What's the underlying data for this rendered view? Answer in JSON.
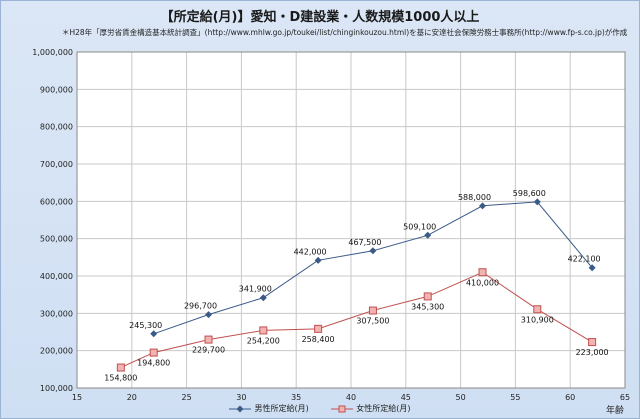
{
  "title": "【所定給(月)】愛知・D建設業・人数規模1000人以上",
  "subtitle": "＊H28年「厚労省賃金構造基本統計調査」(http://www.mhlw.go.jp/toukei/list/chinginkouzou.html)を基に安達社会保険労務士事務所(http://www.fp-s.co.jp)が作成",
  "chart_data": {
    "type": "line",
    "xlabel": "年齢",
    "ylabel": "",
    "xlim": [
      15,
      65
    ],
    "ylim": [
      100000,
      1000000
    ],
    "xticks": [
      15,
      20,
      25,
      30,
      35,
      40,
      45,
      50,
      55,
      60,
      65
    ],
    "yticks": [
      100000,
      200000,
      300000,
      400000,
      500000,
      600000,
      700000,
      800000,
      900000,
      1000000
    ],
    "xtick_labels": [
      "15",
      "20",
      "25",
      "30",
      "35",
      "40",
      "45",
      "50",
      "55",
      "60",
      "65"
    ],
    "ytick_labels": [
      "100,000",
      "200,000",
      "300,000",
      "400,000",
      "500,000",
      "600,000",
      "700,000",
      "800,000",
      "900,000",
      "1,000,000"
    ],
    "grid": true,
    "legend": "bottom",
    "series": [
      {
        "name": "男性所定給(月)",
        "color": "#3a5a88",
        "marker": "diamond",
        "x": [
          22,
          27,
          32,
          37,
          42,
          47,
          52,
          57,
          62
        ],
        "values": [
          245300,
          296700,
          341900,
          442000,
          467500,
          509100,
          588000,
          598600,
          422100
        ],
        "labels": [
          "245,300",
          "296,700",
          "341,900",
          "442,000",
          "467,500",
          "509,100",
          "588,000",
          "598,600",
          "422,100"
        ]
      },
      {
        "name": "女性所定給(月)",
        "color": "#c0504d",
        "marker": "square",
        "x": [
          19,
          22,
          27,
          32,
          37,
          42,
          47,
          52,
          57,
          62
        ],
        "values": [
          154800,
          194800,
          229700,
          254200,
          258400,
          307500,
          345300,
          410000,
          310900,
          223000
        ],
        "labels": [
          "154,800",
          "194,800",
          "229,700",
          "254,200",
          "258,400",
          "307,500",
          "345,300",
          "410,000",
          "310,900",
          "223,000"
        ]
      }
    ]
  }
}
